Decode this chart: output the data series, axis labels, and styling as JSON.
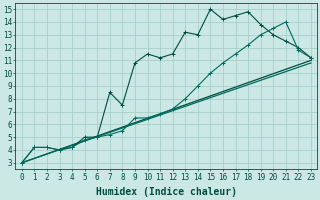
{
  "xlabel": "Humidex (Indice chaleur)",
  "xlim": [
    -0.5,
    23.5
  ],
  "ylim": [
    2.5,
    15.5
  ],
  "xticks": [
    0,
    1,
    2,
    3,
    4,
    5,
    6,
    7,
    8,
    9,
    10,
    11,
    12,
    13,
    14,
    15,
    16,
    17,
    18,
    19,
    20,
    21,
    22,
    23
  ],
  "yticks": [
    3,
    4,
    5,
    6,
    7,
    8,
    9,
    10,
    11,
    12,
    13,
    14,
    15
  ],
  "bg_color": "#cce8e5",
  "grid_color": "#a8d0cc",
  "line_color1": "#006a5e",
  "line_color2": "#004d40",
  "series1_x": [
    0,
    1,
    2,
    3,
    4,
    5,
    6,
    7,
    8,
    9,
    10,
    11,
    12,
    13,
    14,
    15,
    16,
    17,
    18,
    19,
    20,
    21,
    22,
    23
  ],
  "series1_y": [
    3.0,
    4.2,
    4.2,
    4.0,
    4.2,
    5.0,
    5.0,
    8.5,
    7.5,
    10.8,
    11.5,
    11.2,
    11.5,
    13.2,
    13.0,
    15.0,
    14.2,
    14.5,
    14.8,
    13.8,
    13.0,
    12.5,
    12.0,
    11.2
  ],
  "series2_x": [
    0,
    1,
    2,
    3,
    4,
    5,
    6,
    7,
    8,
    9,
    10,
    11,
    12,
    13,
    14,
    15,
    16,
    17,
    18,
    19,
    20,
    21,
    22,
    23
  ],
  "series2_y": [
    3.0,
    4.2,
    4.2,
    4.0,
    4.2,
    4.8,
    5.0,
    5.2,
    5.5,
    6.5,
    6.5,
    6.8,
    7.2,
    8.0,
    9.0,
    10.0,
    10.8,
    11.5,
    12.2,
    13.0,
    13.5,
    14.0,
    11.8,
    11.2
  ],
  "series3_x": [
    0,
    23
  ],
  "series3_y": [
    3.0,
    11.0
  ],
  "series4_x": [
    0,
    23
  ],
  "series4_y": [
    3.0,
    10.8
  ],
  "font_color": "#004d40",
  "font_size_tick": 5.5,
  "font_size_label": 7
}
